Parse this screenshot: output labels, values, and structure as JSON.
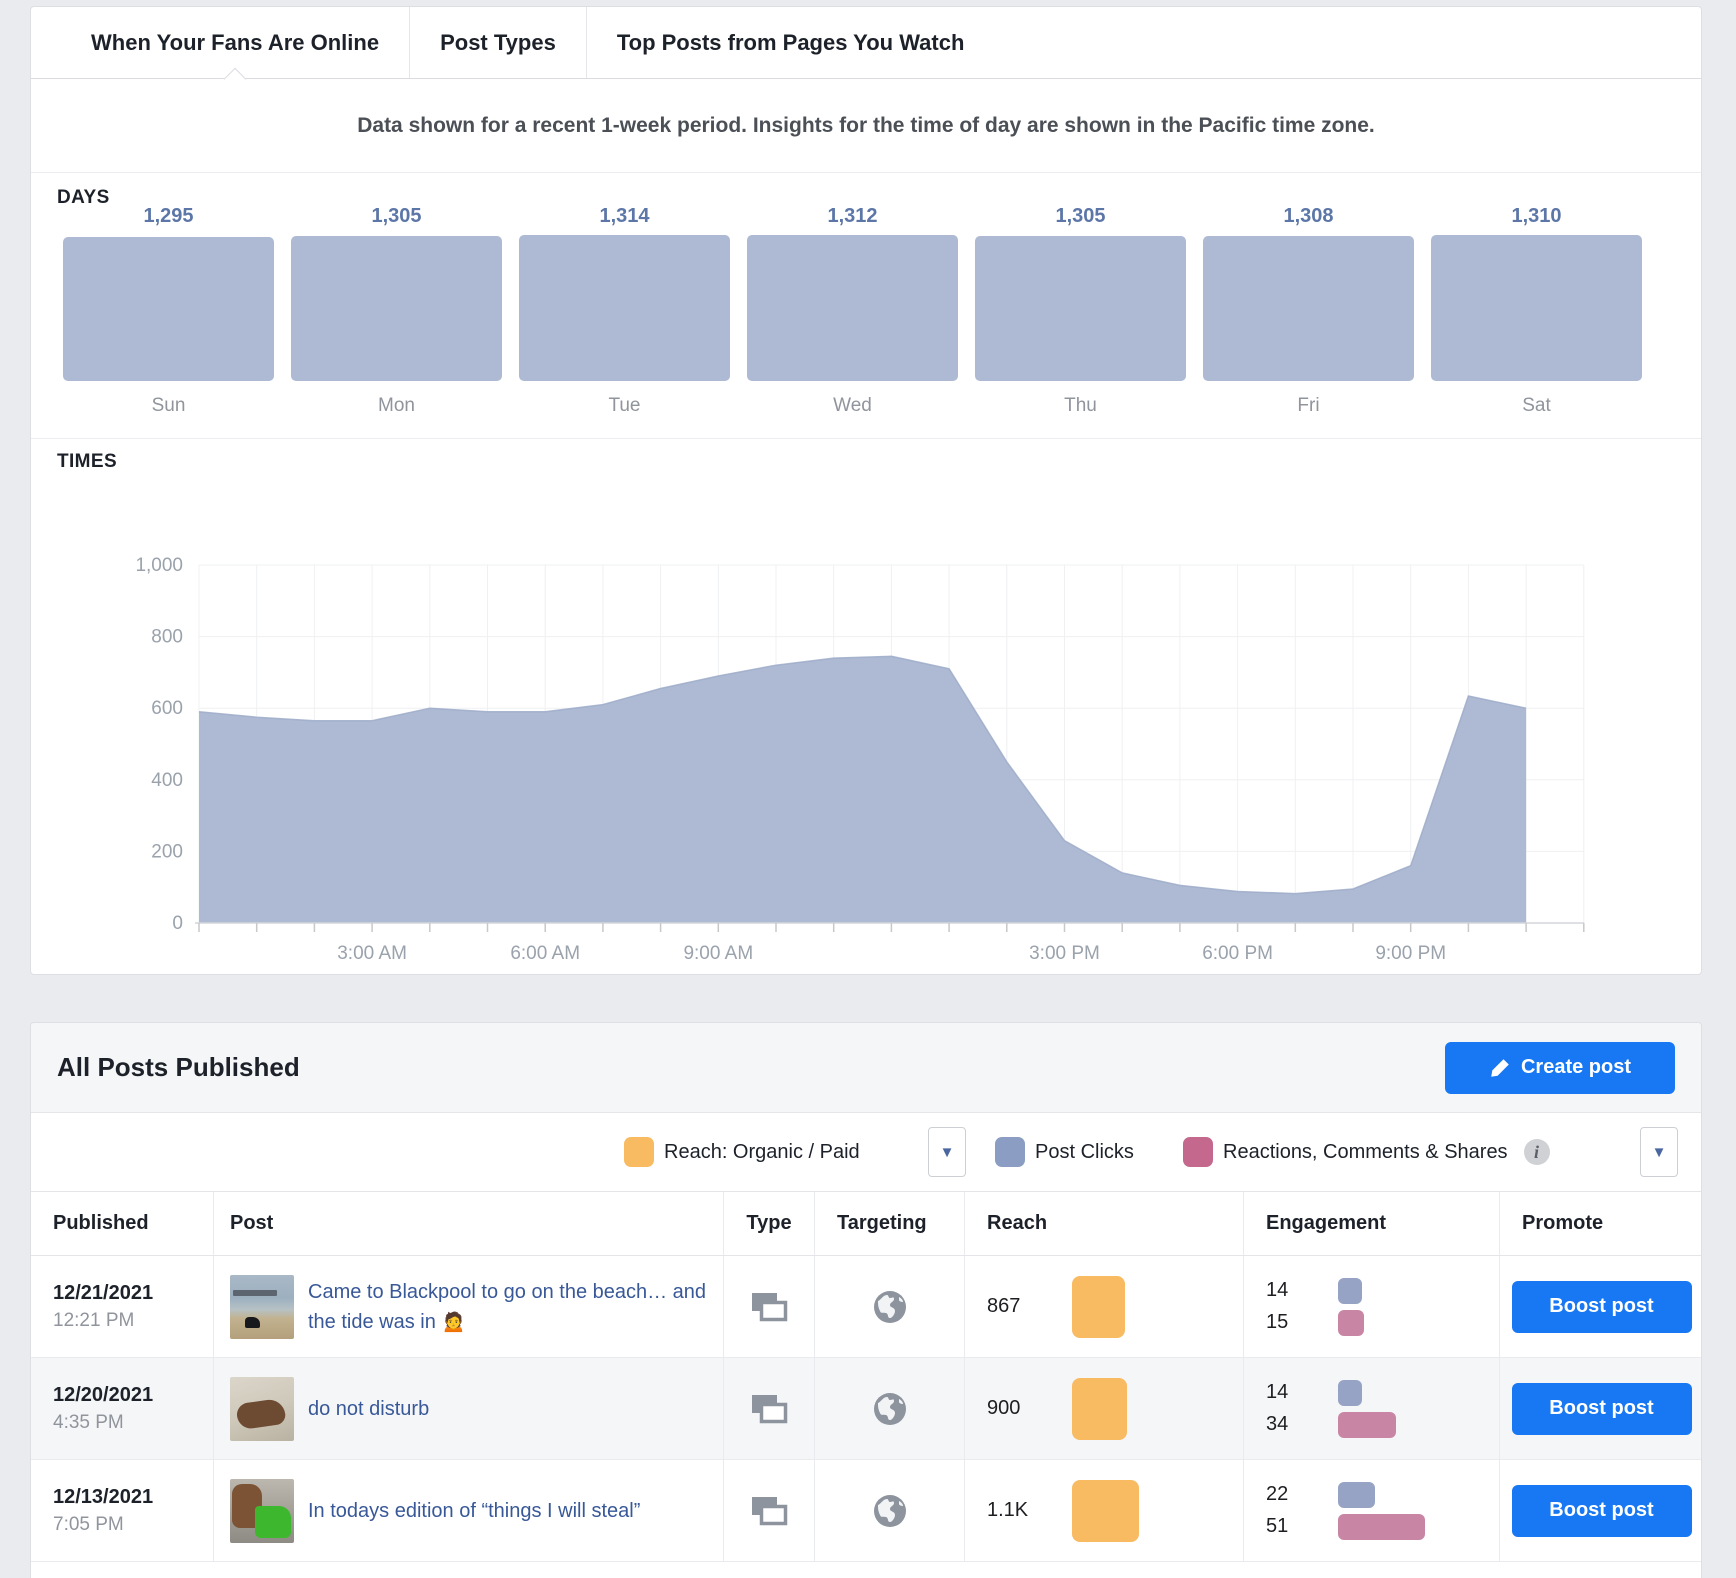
{
  "colors": {
    "page_bg": "#e9ebee",
    "facebook_blue": "#1877f2",
    "link_blue": "#385898",
    "bar_blue_gray": "#aebad3",
    "reach_orange": "#f8bb61",
    "clicks_blue": "#96a3c5",
    "reactions_pink": "#c986a4",
    "legend_reach": "#f8bb61",
    "legend_clicks": "#8b9dc3",
    "legend_reactions": "#c4688e"
  },
  "tabs": {
    "items": [
      {
        "label": "When Your Fans Are Online",
        "active": true
      },
      {
        "label": "Post Types",
        "active": false
      },
      {
        "label": "Top Posts from Pages You Watch",
        "active": false
      }
    ]
  },
  "subtitle": "Data shown for a recent 1-week period. Insights for the time of day are shown in the Pacific time zone.",
  "days_section": {
    "title": "DAYS"
  },
  "times_section": {
    "title": "TIMES"
  },
  "chart_data": [
    {
      "type": "bar",
      "title": "DAYS",
      "categories": [
        "Sun",
        "Mon",
        "Tue",
        "Wed",
        "Thu",
        "Fri",
        "Sat"
      ],
      "values": [
        1295,
        1305,
        1314,
        1312,
        1305,
        1308,
        1310
      ],
      "value_labels": [
        "1,295",
        "1,305",
        "1,314",
        "1,312",
        "1,305",
        "1,308",
        "1,310"
      ],
      "bar_color": "#aebad3",
      "ylim": [
        0,
        1314
      ],
      "grid": false
    },
    {
      "type": "area",
      "title": "TIMES",
      "x_unit": "hour_of_day",
      "x": [
        0,
        1,
        2,
        3,
        4,
        5,
        6,
        7,
        8,
        9,
        10,
        11,
        12,
        13,
        14,
        15,
        16,
        17,
        18,
        19,
        20,
        21,
        22,
        23
      ],
      "values": [
        590,
        575,
        565,
        565,
        600,
        590,
        590,
        610,
        655,
        690,
        720,
        740,
        745,
        710,
        450,
        230,
        140,
        105,
        88,
        82,
        95,
        160,
        634,
        600
      ],
      "ylim": [
        0,
        1000
      ],
      "y_ticks": [
        0,
        200,
        400,
        600,
        800,
        1000
      ],
      "y_tick_labels": [
        "0",
        "200",
        "400",
        "600",
        "800",
        "1,000"
      ],
      "x_ticks": [
        {
          "hour": 3,
          "label": "3:00 AM"
        },
        {
          "hour": 6,
          "label": "6:00 AM"
        },
        {
          "hour": 9,
          "label": "9:00 AM"
        },
        {
          "hour": 15,
          "label": "3:00 PM"
        },
        {
          "hour": 18,
          "label": "6:00 PM"
        },
        {
          "hour": 21,
          "label": "9:00 PM"
        }
      ],
      "area_color": "#aebad3",
      "grid": true,
      "legend_position": "none"
    }
  ],
  "posts_section": {
    "title": "All Posts Published",
    "create_post_label": "Create post"
  },
  "legend": {
    "reach_label": "Reach: Organic / Paid",
    "clicks_label": "Post Clicks",
    "reactions_label": "Reactions, Comments & Shares",
    "info_glyph": "i",
    "caret_glyph": "▼"
  },
  "table": {
    "columns": [
      "Published",
      "Post",
      "Type",
      "Targeting",
      "Reach",
      "Engagement",
      "Promote"
    ],
    "boost_label": "Boost post",
    "rows": [
      {
        "date": "12/21/2021",
        "time": "12:21 PM",
        "text": "Came to Blackpool to go on the beach… and the tide was in 🙍",
        "thumb": "beach",
        "type_icon": "photo-stack-icon",
        "targeting_icon": "globe-icon",
        "reach": "867",
        "reach_num": 867,
        "clicks": "14",
        "clicks_num": 14,
        "reactions": "15",
        "reactions_num": 15
      },
      {
        "date": "12/20/2021",
        "time": "4:35 PM",
        "text": "do not disturb",
        "thumb": "couch",
        "type_icon": "photo-stack-icon",
        "targeting_icon": "globe-icon",
        "reach": "900",
        "reach_num": 900,
        "clicks": "14",
        "clicks_num": 14,
        "reactions": "34",
        "reactions_num": 34
      },
      {
        "date": "12/13/2021",
        "time": "7:05 PM",
        "text": "In todays edition of “things I will steal”",
        "thumb": "watering-can",
        "type_icon": "photo-stack-icon",
        "targeting_icon": "globe-icon",
        "reach": "1.1K",
        "reach_num": 1100,
        "clicks": "22",
        "clicks_num": 22,
        "reactions": "51",
        "reactions_num": 51
      }
    ]
  }
}
